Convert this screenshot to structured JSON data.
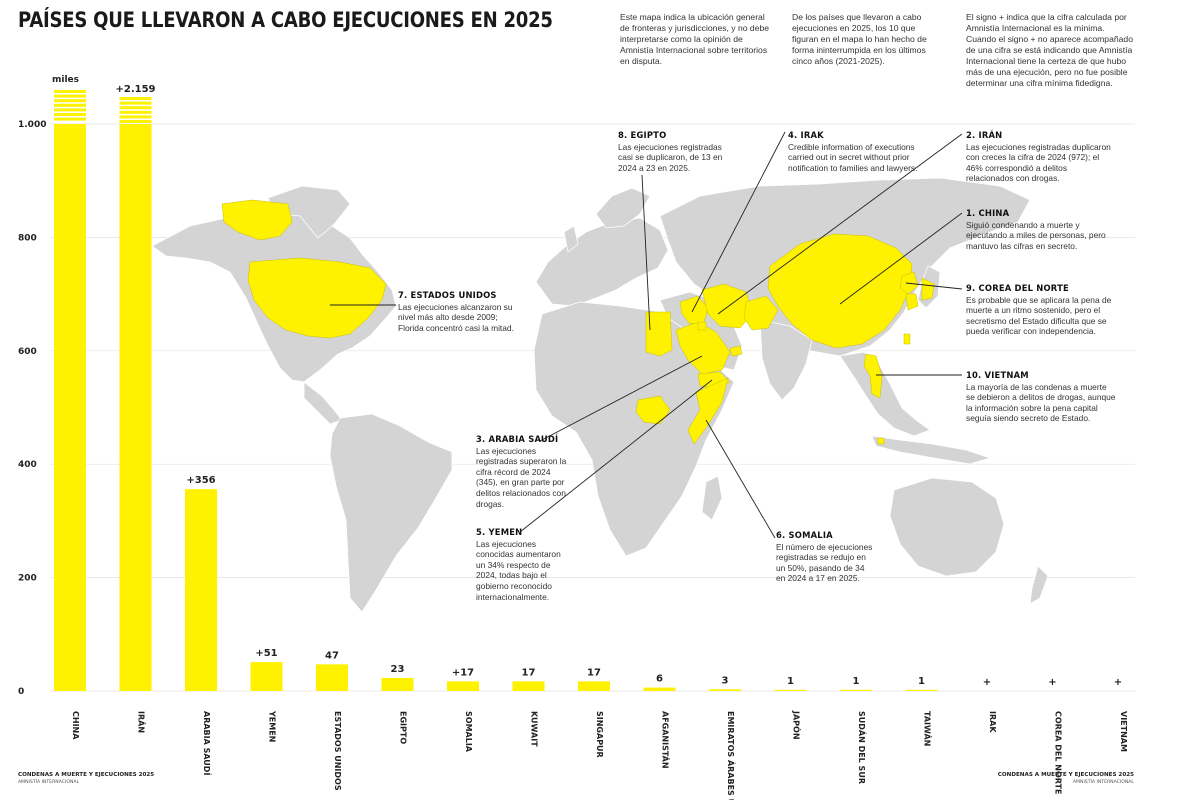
{
  "title": "PAÍSES QUE LLEVARON A CABO EJECUCIONES EN 2025",
  "intro": [
    "Este mapa indica la ubicación general de fronteras y jurisdicciones, y no debe interpretarse como la opinión de Amnistía Internacional sobre territorios en disputa.",
    "De los países que llevaron a cabo ejecuciones en 2025, los 10 que figuran en el mapa lo han hecho de forma ininterrumpida en los últimos cinco años (2021-2025).",
    "El signo + indica que la cifra calculada por Amnistía Internacional es la mínima. Cuando el signo + no aparece acompañado de una cifra se está indicando que Amnistía Internacional tiene la certeza de que hubo más de una ejecución, pero no fue posible determinar una cifra mínima fidedigna."
  ],
  "chart_data": {
    "type": "bar",
    "unit_label": "miles",
    "ylim": [
      0,
      1000
    ],
    "yticks": [
      0,
      200,
      400,
      600,
      800,
      1000
    ],
    "ytick_labels": [
      "0",
      "200",
      "400",
      "600",
      "800",
      "1.000"
    ],
    "grid": true,
    "categories": [
      "CHINA",
      "IRÁN",
      "ARABIA SAUDÍ",
      "YEMEN",
      "ESTADOS UNIDOS",
      "EGIPTO",
      "SOMALIA",
      "KUWAIT",
      "SINGAPUR",
      "AFGANISTÁN",
      "EMIRATOS ÁRABES UNIDOS",
      "JAPÓN",
      "SUDÁN DEL SUR",
      "TAIWÁN",
      "IRAK",
      "COREA DEL NORTE",
      "VIETNAM"
    ],
    "values": [
      null,
      2159,
      356,
      51,
      47,
      23,
      17,
      17,
      17,
      6,
      3,
      1,
      1,
      1,
      null,
      null,
      null
    ],
    "value_labels": [
      "",
      "+2.159",
      "+356",
      "+51",
      "47",
      "23",
      "+17",
      "17",
      "17",
      "6",
      "3",
      "1",
      "1",
      "1",
      "+",
      "+",
      "+"
    ],
    "color": "#FFF200"
  },
  "annotations": [
    {
      "heading": "8. EGIPTO",
      "text": "Las ejecuciones registradas casi se duplicaron, de 13 en 2024 a 23 en 2025."
    },
    {
      "heading": "4. IRAK",
      "text": "Credible information of executions carried out in secret without prior notification to families and lawyers."
    },
    {
      "heading": "2. IRÁN",
      "text": "Las ejecuciones registradas duplicaron con creces la cifra de 2024 (972); el 46% correspondió a delitos relacionados con drogas."
    },
    {
      "heading": "1. CHINA",
      "text": "Siguió condenando a muerte y ejecutando a miles de personas, pero mantuvo las cifras en secreto."
    },
    {
      "heading": "9. COREA DEL NORTE",
      "text": "Es probable que se aplicara la pena de muerte a un ritmo sostenido, pero el secretismo del Estado dificulta que se pueda verificar con independencia."
    },
    {
      "heading": "10. VIETNAM",
      "text": "La mayoría de las condenas a muerte se debieron a delitos de drogas, aunque la información sobre la pena capital seguía siendo secreto de Estado."
    },
    {
      "heading": "7. ESTADOS UNIDOS",
      "text": "Las ejecuciones alcanzaron su nivel más alto desde 2009; Florida concentró casi la mitad."
    },
    {
      "heading": "3. ARABIA SAUDÍ",
      "text": "Las ejecuciones registradas superaron la cifra récord de 2024 (345), en gran parte por delitos relacionados con drogas."
    },
    {
      "heading": "5. YEMEN",
      "text": "Las ejecuciones conocidas aumentaron un 34% respecto de 2024, todas bajo el gobierno reconocido internacionalmente."
    },
    {
      "heading": "6. SOMALIA",
      "text": "El número de ejecuciones registradas se redujo en un 50%, pasando de 34 en 2024 a 17 en 2025."
    }
  ],
  "footer": {
    "title": "CONDENAS A MUERTE Y EJECUCIONES 2025",
    "org": "AMNISTÍA INTERNACIONAL"
  },
  "colors": {
    "highlight": "#FFF200",
    "land": "#D4D4D4",
    "border": "#FFFFFF",
    "line": "#222222"
  }
}
